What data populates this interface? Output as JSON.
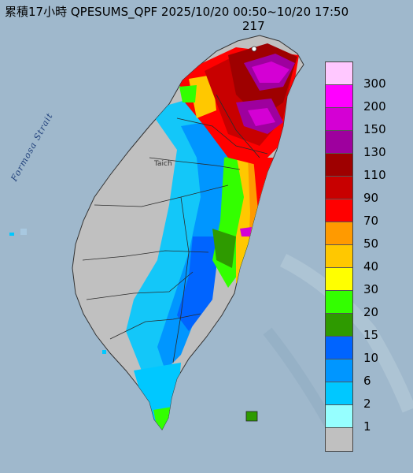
{
  "title": "累積17小時 QPESUMS_QPF 2025/10/20 00:50~10/20 17:50",
  "max_value": "217",
  "strait_label": "Formosa Strait",
  "city_label": "Taich",
  "legend": {
    "levels": [
      "300",
      "200",
      "150",
      "130",
      "110",
      "90",
      "70",
      "50",
      "40",
      "30",
      "20",
      "15",
      "10",
      "6",
      "2",
      "1"
    ],
    "colors": [
      "#ffc8ff",
      "#ff00ff",
      "#d400d4",
      "#9e009e",
      "#9e0000",
      "#c80000",
      "#ff0000",
      "#ff9a00",
      "#ffc800",
      "#ffff00",
      "#33ff00",
      "#2e9a00",
      "#0064ff",
      "#0096ff",
      "#00c8ff",
      "#96ffff",
      "#c0c0c0"
    ]
  },
  "colors": {
    "sea": "#9fb8cc",
    "land": "#c0c0c0"
  }
}
